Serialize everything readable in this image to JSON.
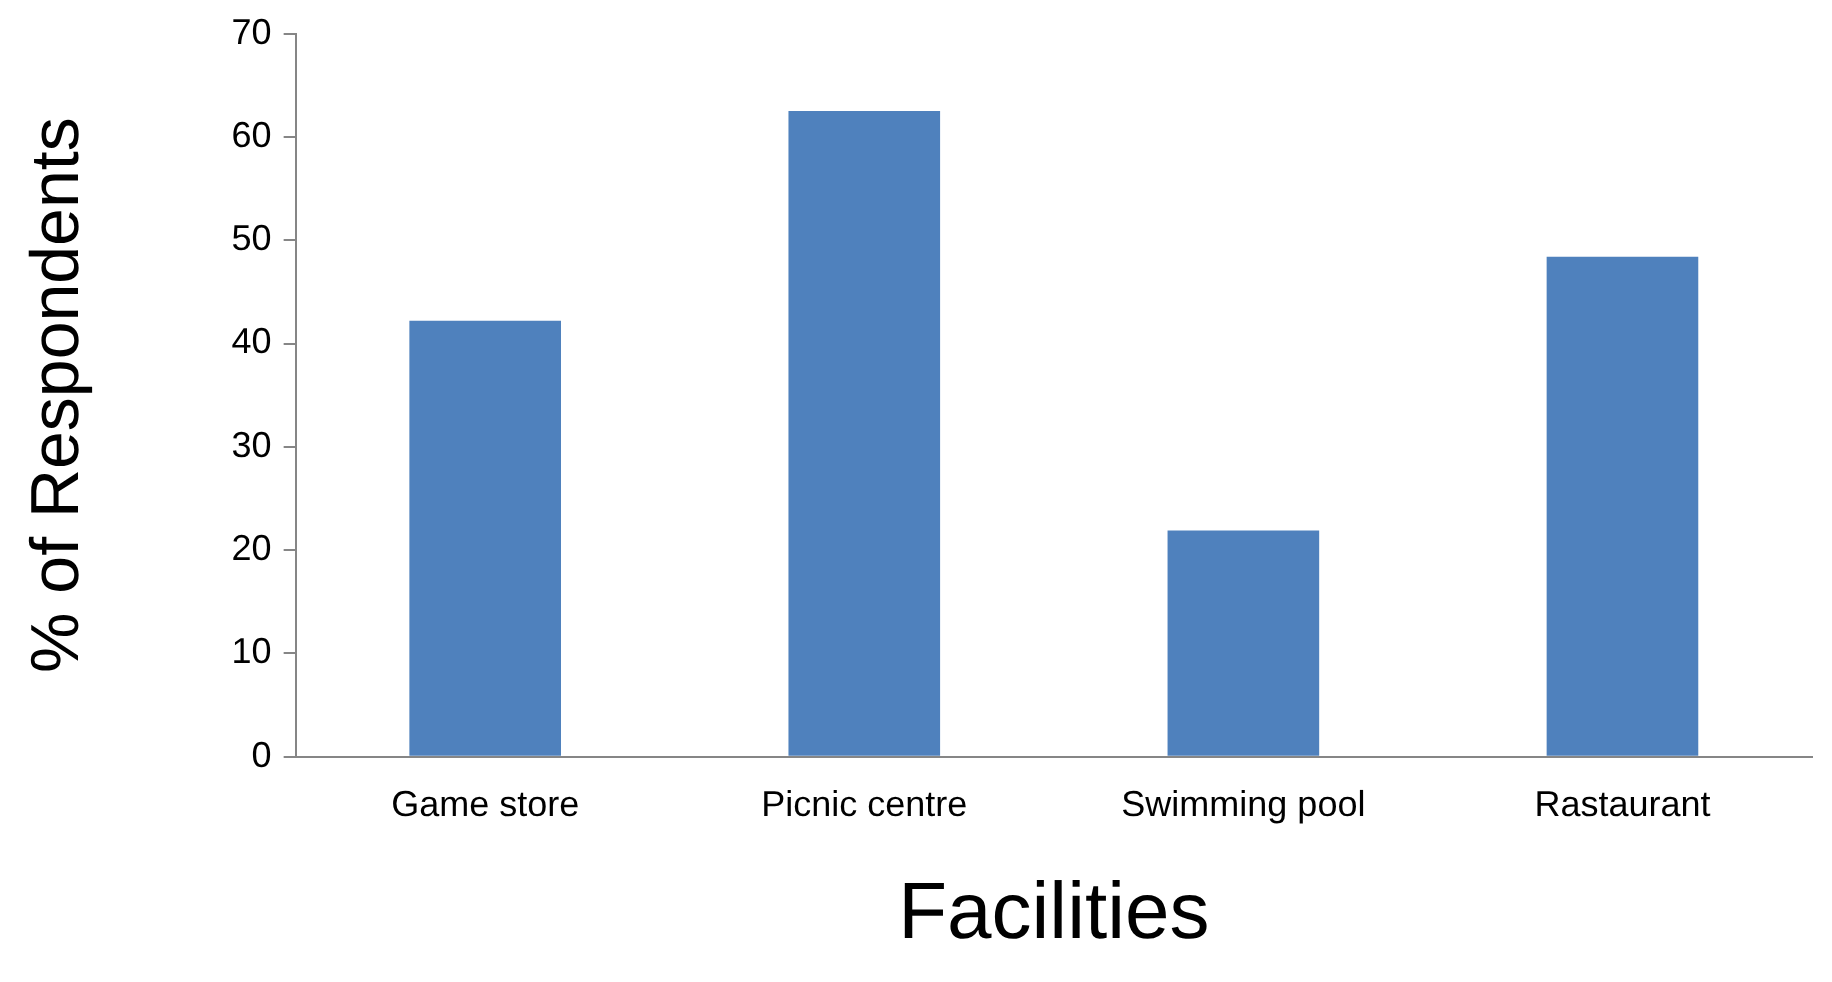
{
  "chart_data": {
    "type": "bar",
    "xlabel": "Facilities",
    "ylabel": "% of Respondents",
    "categories": [
      "Game store",
      "Picnic centre",
      "Swimming pool",
      "Rastaurant"
    ],
    "values": [
      42.2,
      62.5,
      21.9,
      48.4
    ],
    "color": "#4f81bd",
    "ylim": [
      0,
      70
    ],
    "yticks": [
      0,
      10,
      20,
      30,
      40,
      50,
      60,
      70
    ],
    "grid": false,
    "legend": false
  }
}
